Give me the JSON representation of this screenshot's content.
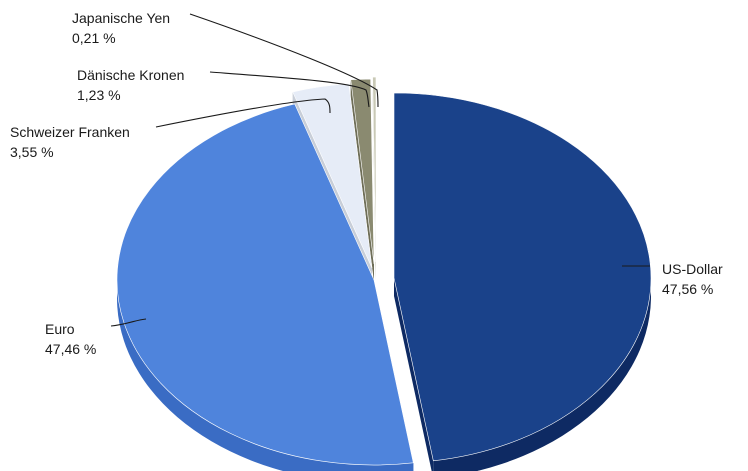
{
  "chart_data": {
    "type": "pie",
    "style": "3d-exploded",
    "title": "",
    "series": [
      {
        "name": "US-Dollar",
        "value": 47.56,
        "value_label": "47,56 %",
        "color": "#1a428a",
        "side_color": "#0e2a63"
      },
      {
        "name": "Euro",
        "value": 47.46,
        "value_label": "47,46 %",
        "color": "#4f84dc",
        "side_color": "#3a6cc4"
      },
      {
        "name": "Schweizer Franken",
        "value": 3.55,
        "value_label": "3,55 %",
        "color": "#e6ecf7",
        "side_color": "#c8ced8"
      },
      {
        "name": "Dänische Kronen",
        "value": 1.23,
        "value_label": "1,23 %",
        "color": "#8a8a70",
        "side_color": "#6e6e58"
      },
      {
        "name": "Japanische Yen",
        "value": 0.21,
        "value_label": "0,21 %",
        "color": "#c9c9b6",
        "side_color": "#a9a996"
      }
    ],
    "legend": "none"
  }
}
